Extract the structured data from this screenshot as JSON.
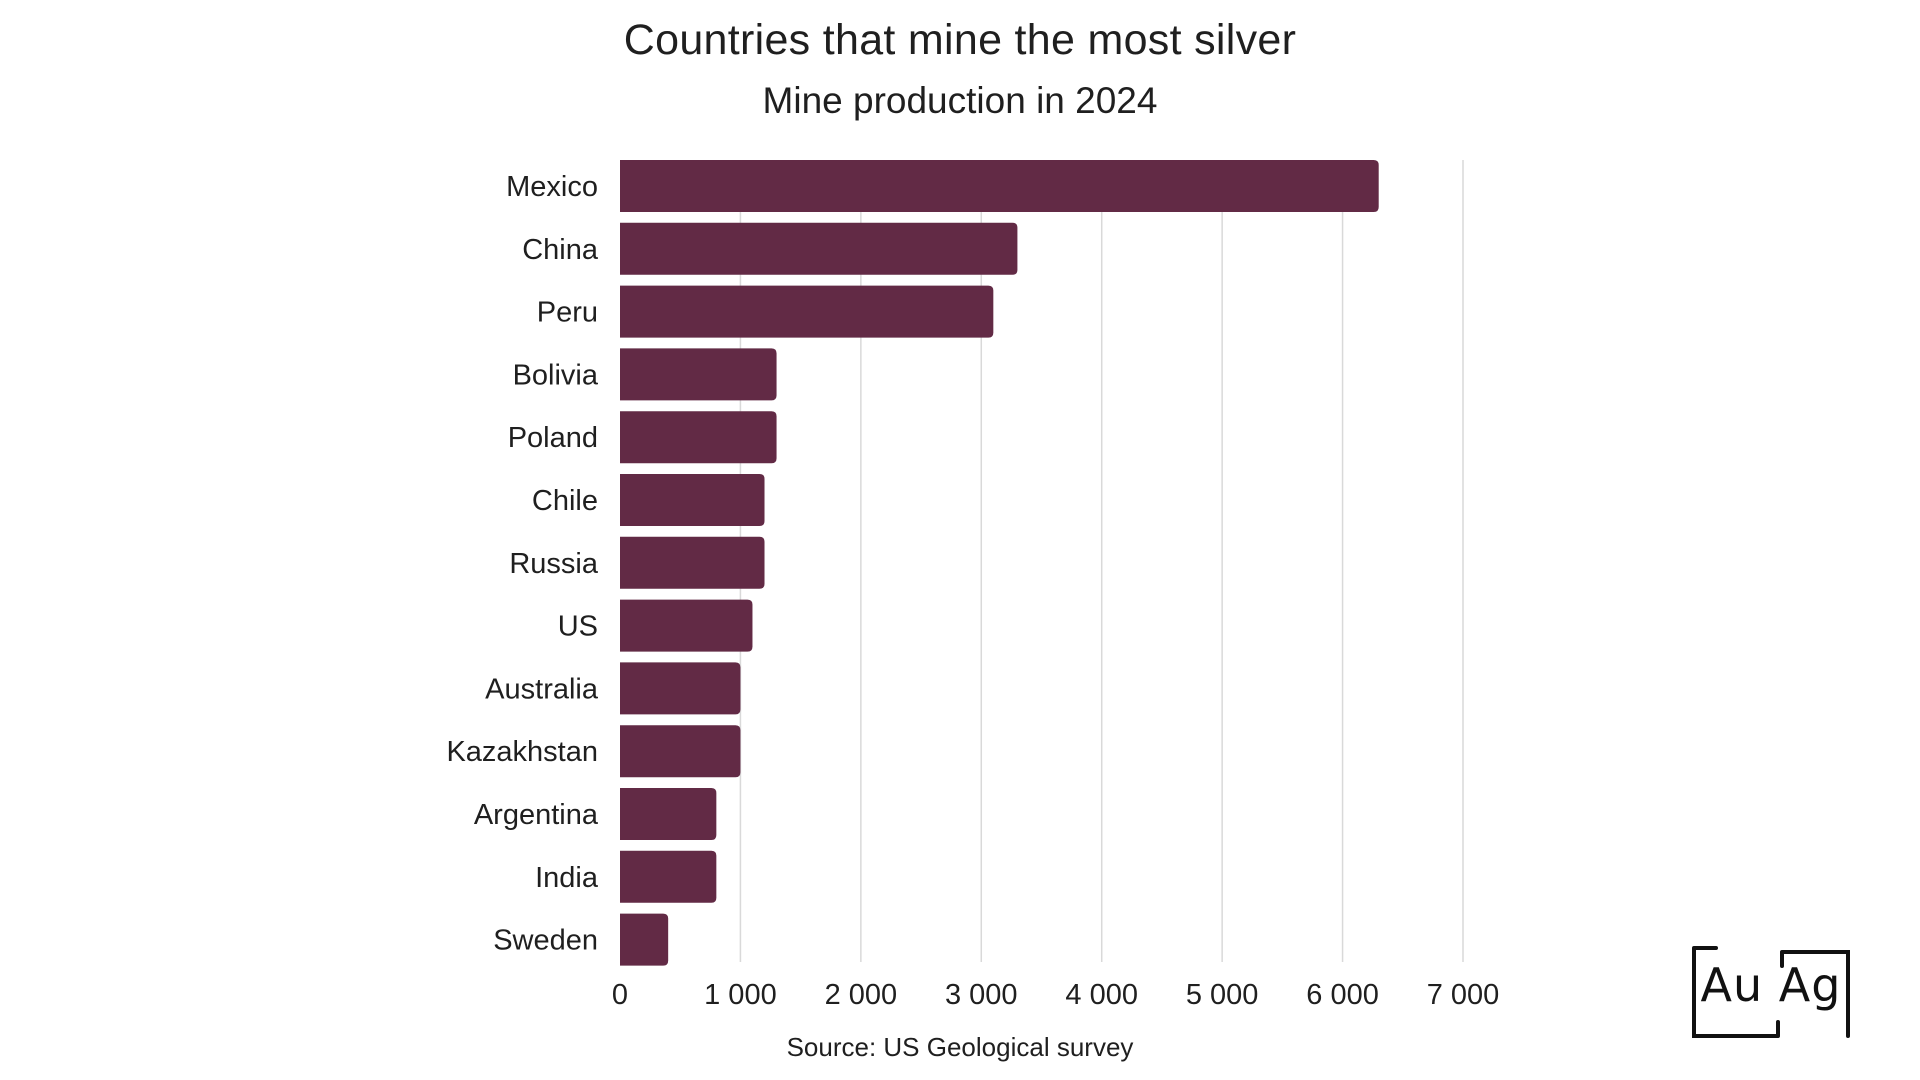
{
  "chart_data": {
    "type": "bar",
    "orientation": "horizontal",
    "title": "Countries that mine the most silver",
    "subtitle": "Mine production in 2024",
    "source": "Source: US Geological survey",
    "categories": [
      "Mexico",
      "China",
      "Peru",
      "Bolivia",
      "Poland",
      "Chile",
      "Russia",
      "US",
      "Australia",
      "Kazakhstan",
      "Argentina",
      "India",
      "Sweden"
    ],
    "values": [
      6300,
      3300,
      3100,
      1300,
      1300,
      1200,
      1200,
      1100,
      1000,
      1000,
      800,
      800,
      400
    ],
    "xlim": [
      0,
      7000
    ],
    "xticks": [
      0,
      1000,
      2000,
      3000,
      4000,
      5000,
      6000,
      7000
    ],
    "xtick_labels": [
      "0",
      "1 000",
      "2 000",
      "3 000",
      "4 000",
      "5 000",
      "6 000",
      "7 000"
    ],
    "grid": "vertical",
    "bar_color": "#622a45",
    "grid_color": "#d9d9d9"
  },
  "logo": {
    "text": "Au Ag"
  }
}
